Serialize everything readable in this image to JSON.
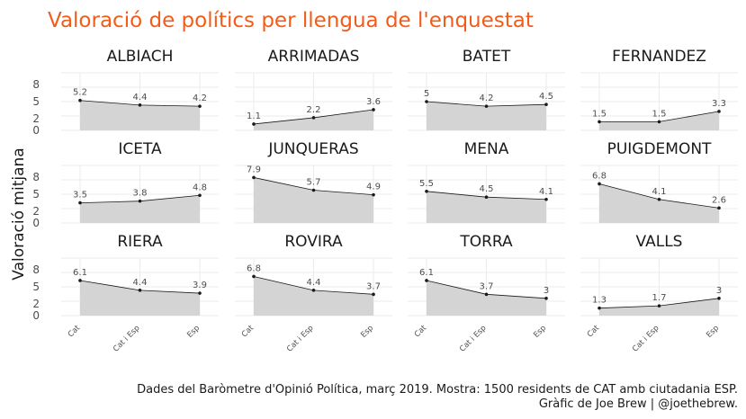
{
  "title": "Valoració de polítics per llengua de l'enquestat",
  "title_color": "#f25c19",
  "ylabel": "Valoració mitjana",
  "caption_line1": "Dades del Baròmetre d'Opinió Política, març 2019. Mostra: 1500 residents de CAT amb ciutadania ESP.",
  "caption_line2": "Gràfic de Joe Brew | @joethebrew.",
  "chart_data": {
    "type": "area",
    "categories": [
      "Cat",
      "Cat i Esp",
      "Esp"
    ],
    "ylim": [
      0,
      10
    ],
    "yticks": [
      0,
      2,
      5,
      8
    ],
    "grid": true,
    "fill_color": "#d4d4d4",
    "line_color": "#1a1a1a",
    "panels": [
      {
        "name": "ALBIACH",
        "values": [
          5.2,
          4.4,
          4.2
        ]
      },
      {
        "name": "ARRIMADAS",
        "values": [
          1.1,
          2.2,
          3.6
        ]
      },
      {
        "name": "BATET",
        "values": [
          5,
          4.2,
          4.5
        ]
      },
      {
        "name": "FERNANDEZ",
        "values": [
          1.5,
          1.5,
          3.3
        ]
      },
      {
        "name": "ICETA",
        "values": [
          3.5,
          3.8,
          4.8
        ]
      },
      {
        "name": "JUNQUERAS",
        "values": [
          7.9,
          5.7,
          4.9
        ]
      },
      {
        "name": "MENA",
        "values": [
          5.5,
          4.5,
          4.1
        ]
      },
      {
        "name": "PUIGDEMONT",
        "values": [
          6.8,
          4.1,
          2.6
        ]
      },
      {
        "name": "RIERA",
        "values": [
          6.1,
          4.4,
          3.9
        ]
      },
      {
        "name": "ROVIRA",
        "values": [
          6.8,
          4.4,
          3.7
        ]
      },
      {
        "name": "TORRA",
        "values": [
          6.1,
          3.7,
          3
        ]
      },
      {
        "name": "VALLS",
        "values": [
          1.3,
          1.7,
          3
        ]
      }
    ]
  }
}
